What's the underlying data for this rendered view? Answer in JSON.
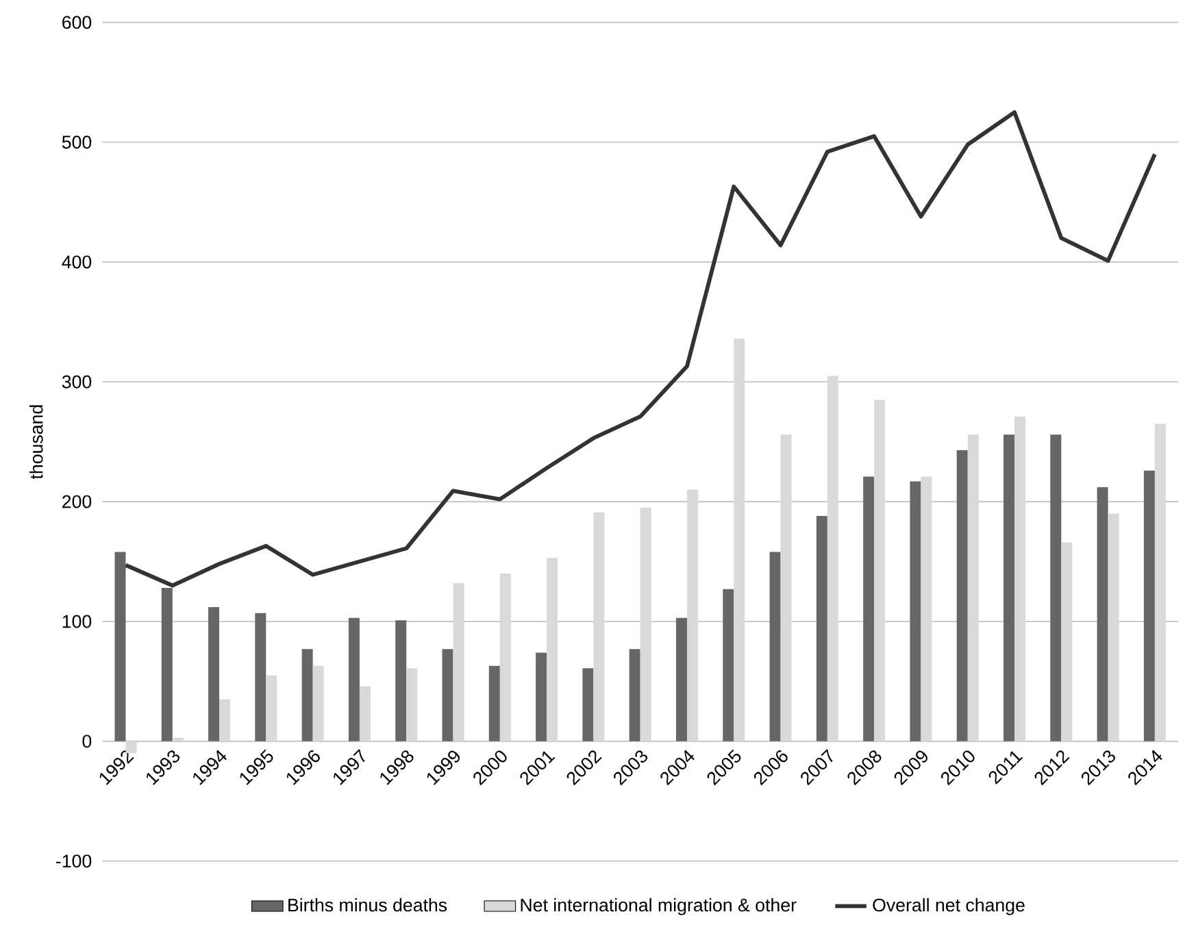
{
  "chart_data": {
    "type": "bar",
    "ylabel": "thousand",
    "categories": [
      "1992",
      "1993",
      "1994",
      "1995",
      "1996",
      "1997",
      "1998",
      "1999",
      "2000",
      "2001",
      "2002",
      "2003",
      "2004",
      "2005",
      "2006",
      "2007",
      "2008",
      "2009",
      "2010",
      "2011",
      "2012",
      "2013",
      "2014"
    ],
    "series": [
      {
        "name": "Births minus deaths",
        "color": "#666666",
        "values": [
          158,
          128,
          112,
          107,
          77,
          103,
          101,
          77,
          63,
          74,
          61,
          77,
          103,
          127,
          158,
          188,
          221,
          217,
          243,
          256,
          256,
          212,
          226
        ]
      },
      {
        "name": "Net international migration & other",
        "color": "#d9d9d9",
        "values": [
          -10,
          3,
          35,
          55,
          63,
          46,
          61,
          132,
          140,
          153,
          191,
          195,
          210,
          336,
          256,
          305,
          285,
          221,
          256,
          271,
          166,
          190,
          265
        ]
      },
      {
        "name": "Overall net change",
        "color": "#333333",
        "type": "line",
        "values": [
          147,
          130,
          148,
          163,
          139,
          150,
          161,
          209,
          202,
          228,
          253,
          271,
          313,
          463,
          414,
          492,
          505,
          438,
          498,
          525,
          420,
          401,
          490
        ]
      }
    ],
    "ylim": [
      -100,
      600
    ],
    "yticks": [
      -100,
      0,
      100,
      200,
      300,
      400,
      500,
      600
    ],
    "grid": "y",
    "legend": "bottom"
  }
}
